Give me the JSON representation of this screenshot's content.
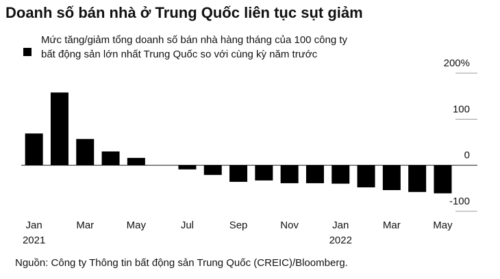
{
  "chart_data": {
    "type": "bar",
    "title": "Doanh số bán nhà ở Trung Quốc liên tục sụt giảm",
    "source": "Nguồn: Công ty Thông tin bất động sản Trung Quốc (CREIC)/Bloomberg.",
    "categories": [
      "Jan 2021",
      null,
      "Mar",
      null,
      "May",
      null,
      "Jul",
      null,
      "Sep",
      null,
      "Nov",
      null,
      "Jan 2022",
      null,
      "Mar",
      null,
      "May"
    ],
    "series": [
      {
        "name": "Mức tăng/giảm tổng doanh số bán nhà hàng tháng của 100 công ty bất động sản lớn nhất Trung Quốc so với cùng kỳ năm trước",
        "color": "#000000",
        "values": [
          69,
          158,
          57,
          30,
          16,
          0,
          -9,
          -21,
          -36,
          -33,
          -39,
          -39,
          -40,
          -48,
          -54,
          -58,
          -61
        ]
      }
    ],
    "ylim": [
      -100,
      200
    ],
    "yticks": [
      {
        "value": 200,
        "label": "200%"
      },
      100,
      0,
      -100
    ],
    "grid": true
  }
}
